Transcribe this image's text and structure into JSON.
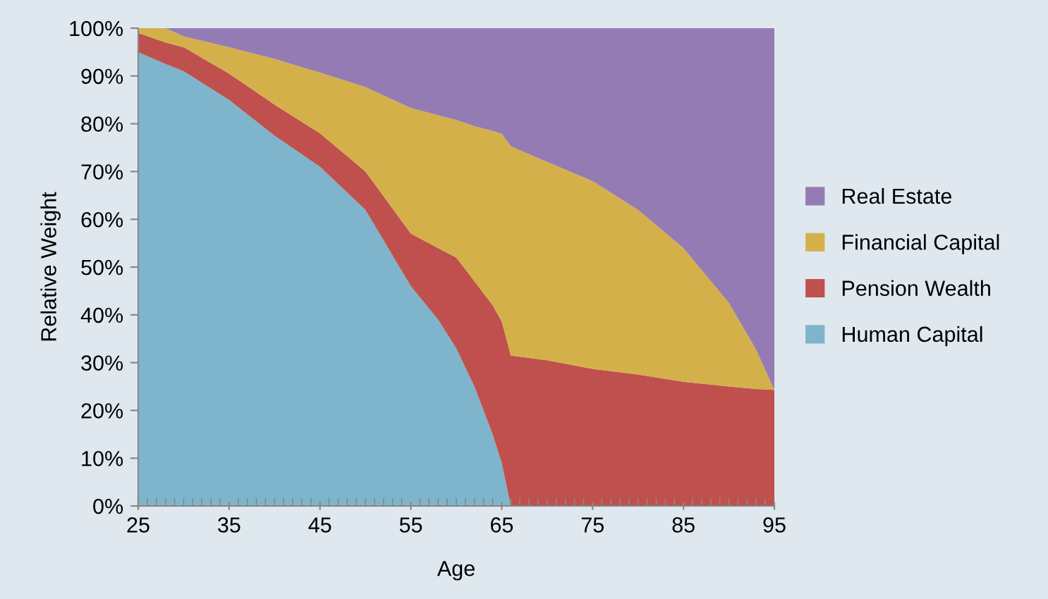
{
  "chart_data": {
    "type": "area",
    "stacked": true,
    "xlabel": "Age",
    "ylabel": "Relative Weight",
    "x": [
      25,
      28,
      30,
      35,
      40,
      45,
      50,
      55,
      58,
      60,
      62,
      64,
      65,
      66,
      70,
      75,
      80,
      85,
      90,
      93,
      95
    ],
    "series": [
      {
        "name": "Human Capital",
        "color": "#7eb5cc",
        "values": [
          95,
          92.5,
          91,
          85,
          77.5,
          71,
          62,
          46,
          39,
          33,
          25,
          15,
          9,
          0,
          0,
          0,
          0,
          0,
          0,
          0,
          0
        ]
      },
      {
        "name": "Pension Wealth",
        "color": "#c0504d",
        "values": [
          4,
          4.5,
          5,
          5.5,
          6.5,
          7,
          8,
          11,
          15,
          19,
          22,
          27,
          29.6,
          31.5,
          30.5,
          28.7,
          27.5,
          26,
          25,
          24.5,
          24.3
        ]
      },
      {
        "name": "Financial Capital",
        "color": "#d4b04a",
        "values": [
          1,
          3,
          2.3,
          5.5,
          9.6,
          12.7,
          17.7,
          26.3,
          27.8,
          28.8,
          32.5,
          36.5,
          39.3,
          43.8,
          41.5,
          39.3,
          34.5,
          28,
          17.5,
          8.2,
          0
        ]
      },
      {
        "name": "Real Estate",
        "color": "#957bb3",
        "values": [
          null,
          0,
          1.7,
          4,
          6.4,
          9.3,
          12.3,
          16.7,
          18.2,
          19.2,
          20.5,
          21.5,
          22.1,
          24.7,
          28,
          32,
          38,
          46,
          57.5,
          67.3,
          75.7
        ]
      }
    ],
    "xlim": [
      25,
      95
    ],
    "xticks": [
      25,
      35,
      45,
      55,
      65,
      75,
      85,
      95
    ],
    "ylim": [
      0,
      100
    ],
    "yticks": [
      {
        "value": 0,
        "label": "0%"
      },
      {
        "value": 10,
        "label": "10%"
      },
      {
        "value": 20,
        "label": "20%"
      },
      {
        "value": 30,
        "label": "30%"
      },
      {
        "value": 40,
        "label": "40%"
      },
      {
        "value": 50,
        "label": "50%"
      },
      {
        "value": 60,
        "label": "60%"
      },
      {
        "value": 70,
        "label": "70%"
      },
      {
        "value": 80,
        "label": "80%"
      },
      {
        "value": 90,
        "label": "90%"
      },
      {
        "value": 100,
        "label": "100%"
      }
    ],
    "grid": false,
    "legend": "right"
  }
}
